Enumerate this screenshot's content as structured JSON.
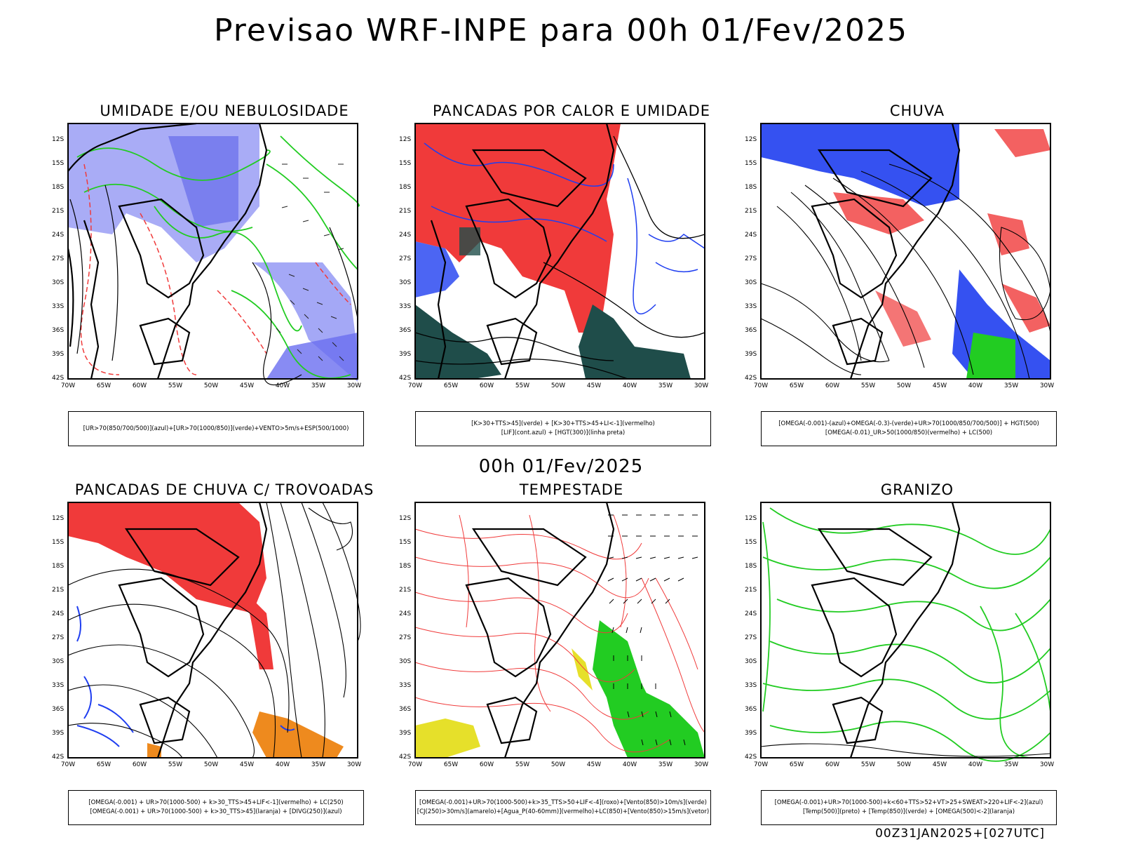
{
  "title": "Previsao WRF-INPE  para 00h 01/Fev/2025",
  "subtitle": "00h 01/Fev/2025",
  "footer": "00Z31JAN2025+[027UTC]",
  "axis": {
    "lat_ticks": [
      "12S",
      "15S",
      "18S",
      "21S",
      "24S",
      "27S",
      "30S",
      "33S",
      "36S",
      "39S",
      "42S"
    ],
    "lon_ticks": [
      "70W",
      "65W",
      "60W",
      "55W",
      "50W",
      "45W",
      "40W",
      "35W",
      "30W"
    ]
  },
  "panels": [
    {
      "title": "UMIDADE E/OU NEBULOSIDADE",
      "legend": [
        "[UR>70(850/700/500)](azul)+[UR>70(1000/850)](verde)+VENTO>5m/s+ESP(500/1000)"
      ]
    },
    {
      "title": "PANCADAS POR CALOR E UMIDADE",
      "legend": [
        "[K>30+TTS>45](verde) + [K>30+TTS>45+LI<-1](vermelho)",
        "[LIF](cont.azul) + [HGT(300)](linha preta)"
      ]
    },
    {
      "title": "CHUVA",
      "legend": [
        "[OMEGA(-0.001)-(azul)+OMEGA(-0.3)-(verde)+UR>70(1000/850/700/500)] + HGT(500)",
        "[OMEGA(-0.01)_UR>50(1000/850)(vermelho) + LC(500)"
      ]
    },
    {
      "title": "PANCADAS DE CHUVA C/ TROVOADAS",
      "legend": [
        "[OMEGA(-0.001) + UR>70(1000-500) + k>30_TTS>45+LIF<-1](vermelho) + LC(250)",
        "[OMEGA(-0.001) + UR>70(1000-500) + k>30_TTS>45](laranja) + [DIVG(250)](azul)"
      ]
    },
    {
      "title": "TEMPESTADE",
      "legend": [
        "[OMEGA(-0.001)+UR>70(1000-500)+k>35_TTS>50+LIF<-4](roxo)+[Vento(850)>10m/s](verde)",
        "[CJ(250)>30m/s](amarelo)+[Agua_P(40-60mm)](vermelho)+LC(850)+[Vento(850)>15m/s](vetor)"
      ]
    },
    {
      "title": "GRANIZO",
      "legend": [
        "[OMEGA(-0.001)+UR>70(1000-500)+k<60+TTS>52+VT>25+SWEAT>220+LIF<-2](azul)",
        "[Temp(500)](preto) + [Temp(850)](verde) + [OMEGA(500)<-2](laranja)"
      ]
    }
  ],
  "colors": {
    "red": "#f03a3a",
    "blue": "#1f3ef0",
    "green": "#22cc22",
    "lavender": "#9a9ef5",
    "darkteal": "#1f4d4a",
    "orange": "#ee8a1e",
    "yellow": "#e6e02a"
  }
}
